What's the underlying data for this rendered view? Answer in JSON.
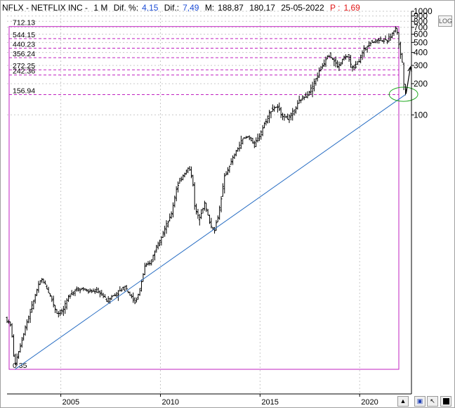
{
  "header": {
    "symbol": "NFLX - NETFLIX INC -",
    "period": "1 M",
    "dif_pct_label": "Dif. %:",
    "dif_pct_value": "4,15",
    "dif_label": "Dif.:",
    "dif_value": "7,49",
    "m_label": "M:",
    "m_value": "188,87",
    "last_value": "180,17",
    "date": "25-05-2022",
    "p_label": "P :",
    "p_value": "1,69"
  },
  "controls": {
    "log_label": "LOG",
    "save_icon": "save-icon",
    "cursor_icon": "cursor-icon",
    "color_icon": "color-square-icon"
  },
  "colors": {
    "candles": "#000000",
    "trendline": "#2a6fc4",
    "levels": "#c020c0",
    "ellipse": "#22aa22",
    "grid": "#c8c8c8"
  },
  "chart_data": {
    "type": "ohlc-bar",
    "scale": "log",
    "ylim": [
      0.35,
      1000
    ],
    "y_ticks": [
      100,
      200,
      300,
      400,
      500,
      600,
      700,
      800,
      900,
      1000
    ],
    "y_tick_labels": [
      "100",
      "200",
      "300",
      "400",
      "500",
      "600",
      "700",
      "800",
      "900",
      "1000"
    ],
    "x_ticks": [
      2005,
      2010,
      2015,
      2020
    ],
    "x_tick_labels": [
      "2005",
      "2010",
      "2015",
      "2020"
    ],
    "xlim": [
      2002.3,
      2022.6
    ],
    "grid": true,
    "levels": [
      {
        "label": "712.13",
        "value": 712.13
      },
      {
        "label": "544.15",
        "value": 544.15
      },
      {
        "label": "440.23",
        "value": 440.23
      },
      {
        "label": "356.24",
        "value": 356.24
      },
      {
        "label": "272.25",
        "value": 272.25
      },
      {
        "label": "242.36",
        "value": 242.36
      },
      {
        "label": "156.94",
        "value": 156.94
      },
      {
        "label": "0.35",
        "value": 0.35
      }
    ],
    "trendline": {
      "from": [
        2002.7,
        0.35
      ],
      "to": [
        2022.3,
        157
      ]
    },
    "arrow": {
      "from": [
        2022.33,
        160
      ],
      "to": [
        2022.55,
        290
      ]
    },
    "ellipse": {
      "center": [
        2022.2,
        158
      ],
      "rx_years": 0.72,
      "ry_ratio": 1.17
    },
    "price_path": [
      [
        2002.3,
        1.1
      ],
      [
        2002.6,
        0.9
      ],
      [
        2002.75,
        0.38
      ],
      [
        2003.0,
        0.55
      ],
      [
        2003.3,
        0.9
      ],
      [
        2003.6,
        1.35
      ],
      [
        2003.9,
        2.1
      ],
      [
        2004.1,
        2.6
      ],
      [
        2004.3,
        2.3
      ],
      [
        2004.6,
        1.7
      ],
      [
        2004.9,
        1.2
      ],
      [
        2005.2,
        1.3
      ],
      [
        2005.5,
        1.8
      ],
      [
        2005.8,
        2.05
      ],
      [
        2006.2,
        2.1
      ],
      [
        2006.5,
        1.95
      ],
      [
        2006.8,
        2.0
      ],
      [
        2007.1,
        1.9
      ],
      [
        2007.4,
        1.6
      ],
      [
        2007.7,
        1.8
      ],
      [
        2008.0,
        1.95
      ],
      [
        2008.3,
        2.25
      ],
      [
        2008.5,
        1.9
      ],
      [
        2008.8,
        1.55
      ],
      [
        2009.0,
        1.9
      ],
      [
        2009.3,
        3.4
      ],
      [
        2009.6,
        3.8
      ],
      [
        2009.9,
        5.5
      ],
      [
        2010.3,
        8.0
      ],
      [
        2010.6,
        10.5
      ],
      [
        2010.9,
        20.0
      ],
      [
        2011.2,
        26.0
      ],
      [
        2011.5,
        31.0
      ],
      [
        2011.7,
        24.0
      ],
      [
        2011.8,
        13.0
      ],
      [
        2012.0,
        10.0
      ],
      [
        2012.3,
        14.0
      ],
      [
        2012.6,
        8.5
      ],
      [
        2012.8,
        7.8
      ],
      [
        2013.0,
        11.0
      ],
      [
        2013.3,
        25.0
      ],
      [
        2013.6,
        34.0
      ],
      [
        2013.9,
        45.0
      ],
      [
        2014.2,
        58.0
      ],
      [
        2014.5,
        62.0
      ],
      [
        2014.8,
        52.0
      ],
      [
        2015.0,
        60.0
      ],
      [
        2015.3,
        82.0
      ],
      [
        2015.6,
        110.0
      ],
      [
        2015.9,
        120.0
      ],
      [
        2016.2,
        100.0
      ],
      [
        2016.5,
        92.0
      ],
      [
        2016.8,
        110.0
      ],
      [
        2017.1,
        140.0
      ],
      [
        2017.4,
        155.0
      ],
      [
        2017.7,
        185.0
      ],
      [
        2018.0,
        250.0
      ],
      [
        2018.3,
        320.0
      ],
      [
        2018.5,
        390.0
      ],
      [
        2018.8,
        330.0
      ],
      [
        2019.0,
        290.0
      ],
      [
        2019.3,
        360.0
      ],
      [
        2019.5,
        365.0
      ],
      [
        2019.7,
        280.0
      ],
      [
        2019.9,
        300.0
      ],
      [
        2020.1,
        350.0
      ],
      [
        2020.3,
        430.0
      ],
      [
        2020.6,
        500.0
      ],
      [
        2020.9,
        520.0
      ],
      [
        2021.1,
        540.0
      ],
      [
        2021.4,
        510.0
      ],
      [
        2021.6,
        560.0
      ],
      [
        2021.8,
        650.0
      ],
      [
        2021.9,
        690.0
      ],
      [
        2022.0,
        600.0
      ],
      [
        2022.1,
        390.0
      ],
      [
        2022.2,
        360.0
      ],
      [
        2022.3,
        190.0
      ],
      [
        2022.35,
        180.0
      ]
    ]
  }
}
